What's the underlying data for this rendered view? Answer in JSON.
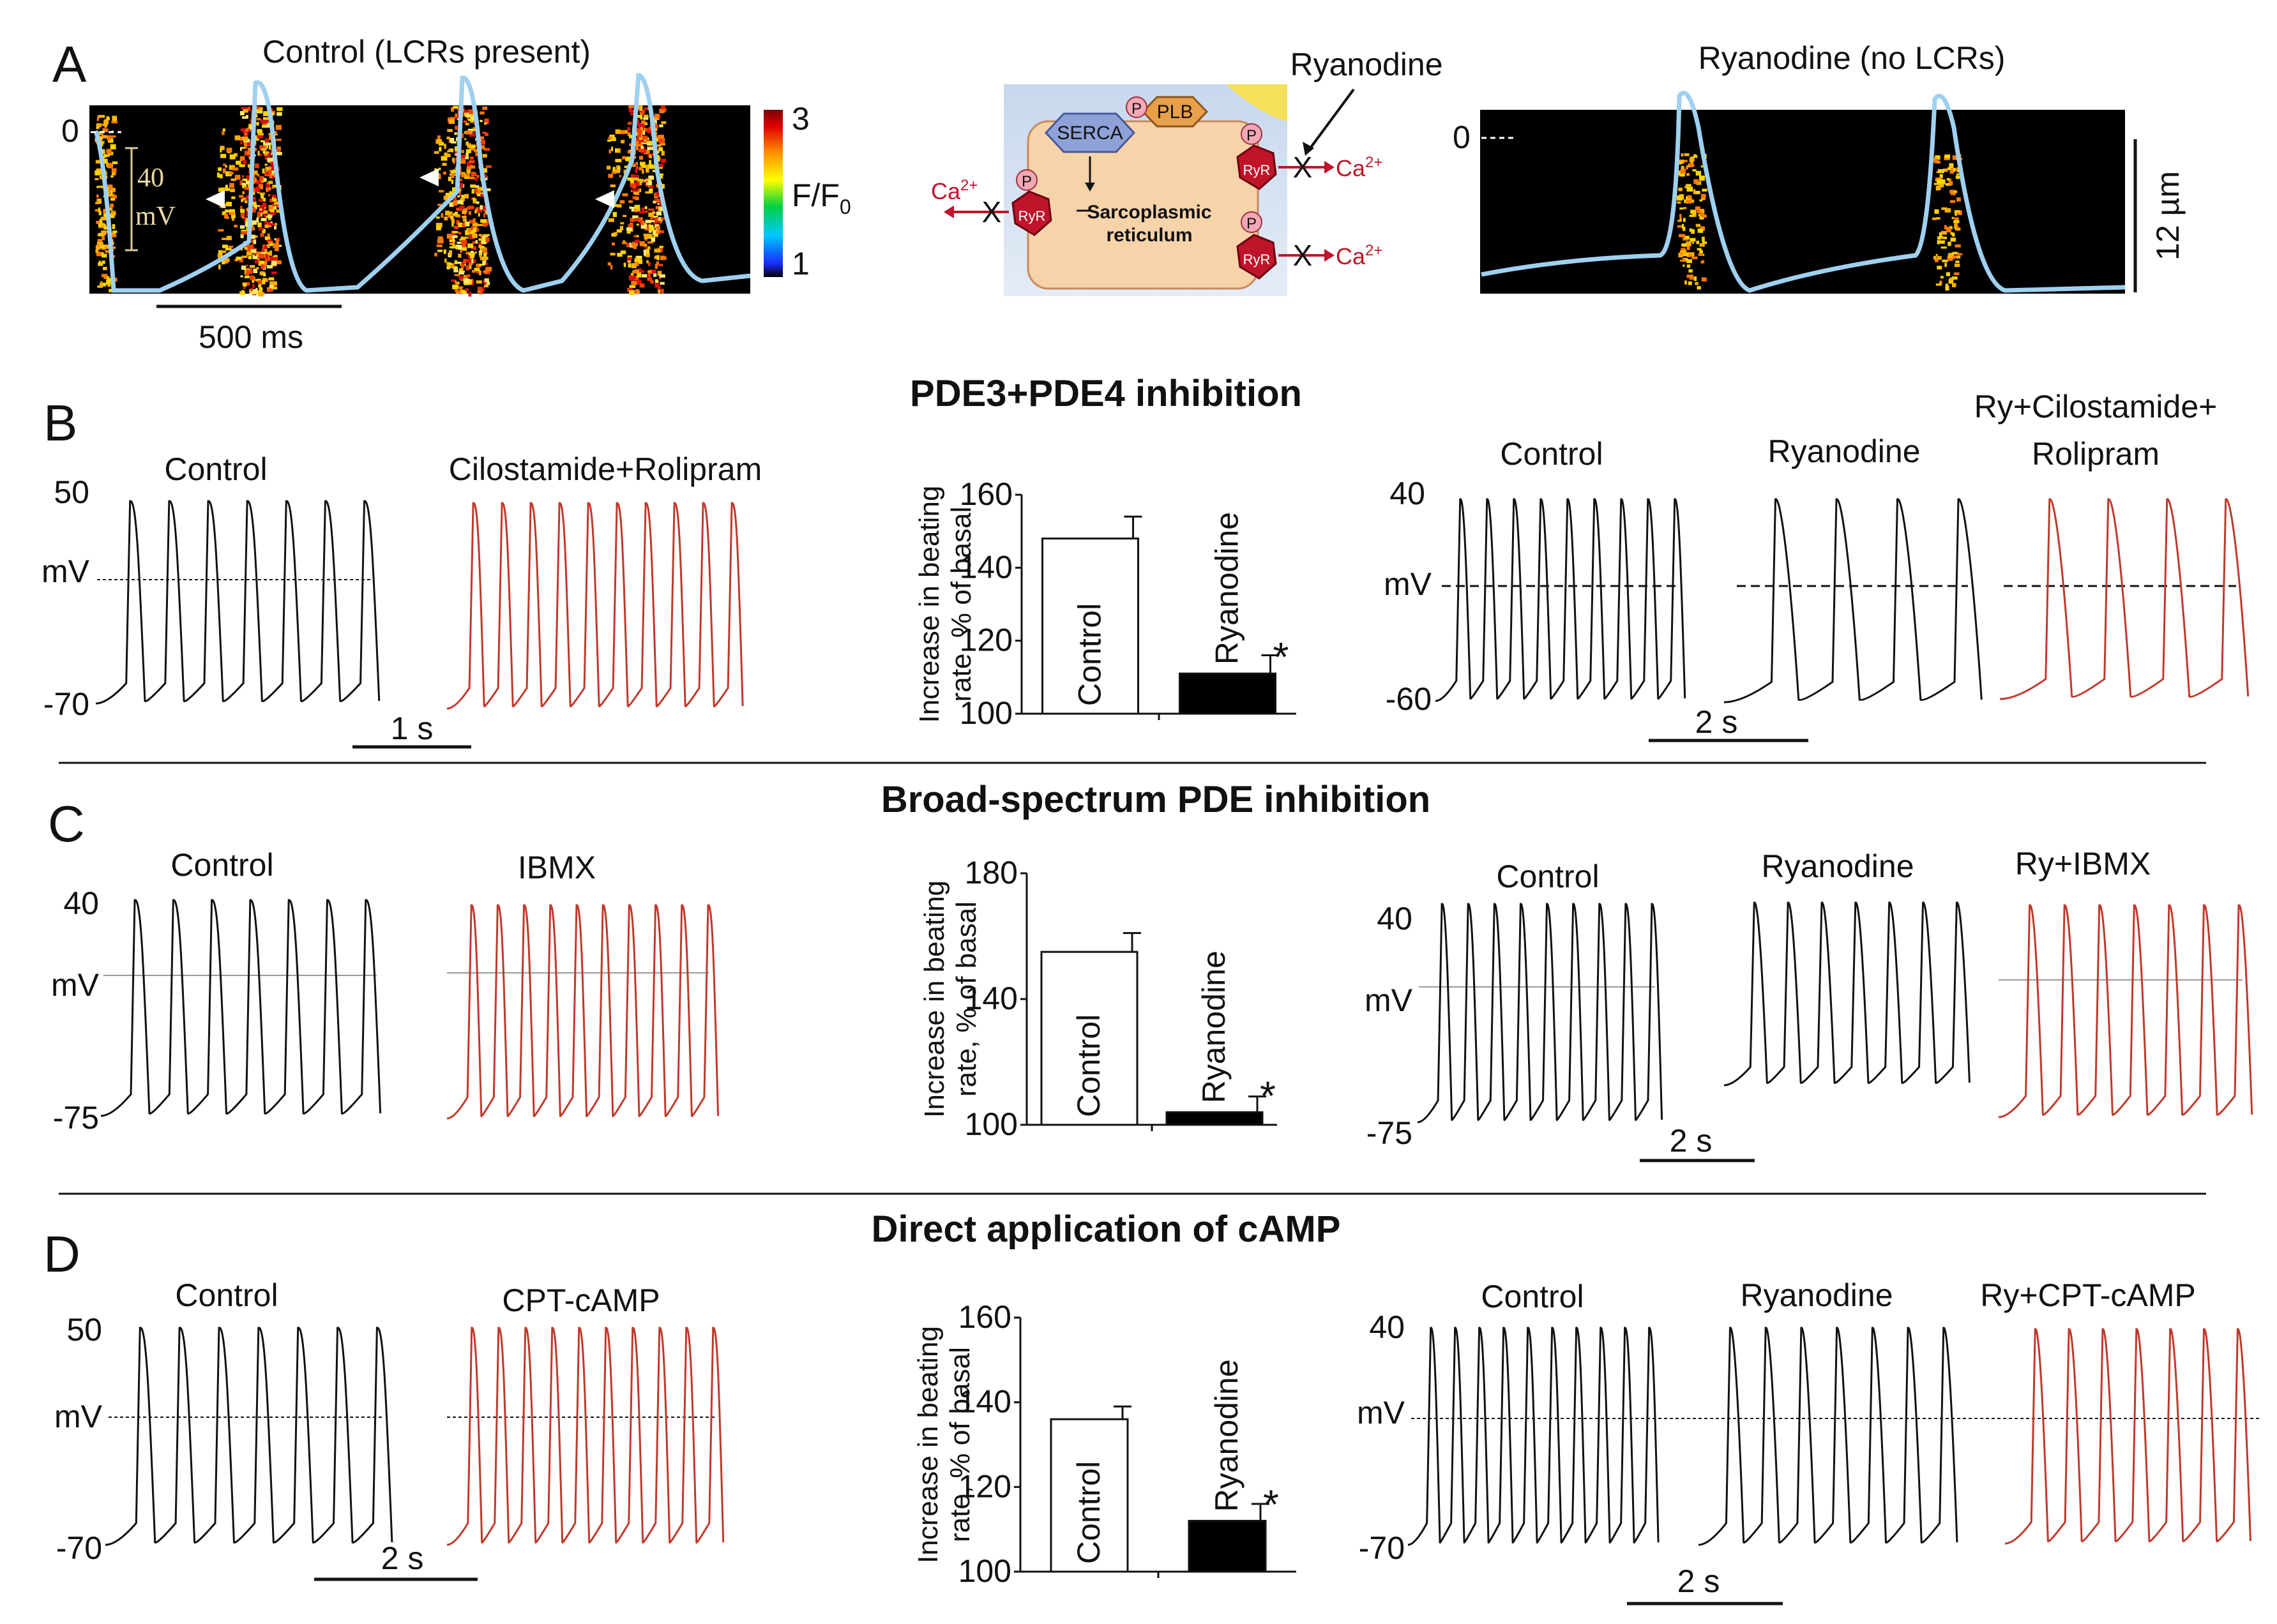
{
  "panels": {
    "A": {
      "letter": "A",
      "left_title": "Control (LCRs present)",
      "right_title": "Ryanodine (no LCRs)",
      "zero_left": "0",
      "zero_right": "0",
      "voltage_scale_value": "40",
      "voltage_scale_unit": "mV",
      "time_scale": "500 ms",
      "space_scale": "12 µm",
      "colorbar_max": "3",
      "colorbar_min": "1",
      "colorbar_label": "F/F",
      "colorbar_label_sub": "0",
      "diagram": {
        "drug": "Ryanodine",
        "serca": "SERCA",
        "plb": "PLB",
        "phospho": "P",
        "ryr": "RyR",
        "sr_line1": "Sarcoplasmic",
        "sr_line2": "reticulum",
        "ca": "Ca",
        "ca_charge": "2+",
        "block": "X"
      }
    },
    "B": {
      "letter": "B",
      "section_title": "PDE3+PDE4 inhibition",
      "left_control": "Control",
      "left_drug": "Cilostamide+Rolipram",
      "y_top": "50",
      "y_mid": "mV",
      "y_bottom": "-70",
      "time_left": "1 s",
      "right_control": "Control",
      "right_ry": "Ryanodine",
      "right_combo_line1": "Ry+Cilostamide+",
      "right_combo_line2": "Rolipram",
      "right_y_top": "40",
      "right_y_mid": "mV",
      "right_y_bottom": "-60",
      "time_right": "2 s"
    },
    "C": {
      "letter": "C",
      "section_title": "Broad-spectrum PDE inhibition",
      "left_control": "Control",
      "left_drug": "IBMX",
      "y_top": "40",
      "y_mid": "mV",
      "y_bottom": "-75",
      "right_control": "Control",
      "right_ry": "Ryanodine",
      "right_combo": "Ry+IBMX",
      "right_y_top": "40",
      "right_y_mid": "mV",
      "right_y_bottom": "-75",
      "time_right": "2 s"
    },
    "D": {
      "letter": "D",
      "section_title": "Direct application of cAMP",
      "left_control": "Control",
      "left_drug": "CPT-cAMP",
      "y_top": "50",
      "y_mid": "mV",
      "y_bottom": "-70",
      "time_left": "2 s",
      "right_control": "Control",
      "right_ry": "Ryanodine",
      "right_combo": "Ry+CPT-cAMP",
      "right_y_top": "40",
      "right_y_mid": "mV",
      "right_y_bottom": "-70",
      "time_right": "2 s"
    }
  },
  "chart_data": [
    {
      "id": "B",
      "type": "bar",
      "categories": [
        "Control",
        "Ryanodine"
      ],
      "values": [
        148,
        111
      ],
      "errors": [
        6,
        5
      ],
      "significance": [
        "",
        "*"
      ],
      "bar_colors": [
        "#ffffff",
        "#000000"
      ],
      "ylabel_line1": "Increase in beating",
      "ylabel_line2": "rate, % of basal",
      "ylim": [
        100,
        160
      ],
      "yticks": [
        100,
        120,
        140,
        160
      ]
    },
    {
      "id": "C",
      "type": "bar",
      "categories": [
        "Control",
        "Ryanodine"
      ],
      "values": [
        155,
        104
      ],
      "errors": [
        6,
        5
      ],
      "significance": [
        "",
        "*"
      ],
      "bar_colors": [
        "#ffffff",
        "#000000"
      ],
      "ylabel_line1": "Increase in beating",
      "ylabel_line2": "rate, % of basal",
      "ylim": [
        100,
        180
      ],
      "yticks": [
        100,
        140,
        180
      ]
    },
    {
      "id": "D",
      "type": "bar",
      "categories": [
        "Control",
        "Ryanodine"
      ],
      "values": [
        136,
        112
      ],
      "errors": [
        3,
        4
      ],
      "significance": [
        "",
        "*"
      ],
      "bar_colors": [
        "#ffffff",
        "#000000"
      ],
      "ylabel_line1": "Increase in beating",
      "ylabel_line2": "rate, % of basal",
      "ylim": [
        100,
        160
      ],
      "yticks": [
        100,
        120,
        140,
        160
      ]
    }
  ],
  "trace_colors": {
    "control": "#111111",
    "drug": "#c0392b",
    "ap_overlay": "#9fd0f0"
  }
}
